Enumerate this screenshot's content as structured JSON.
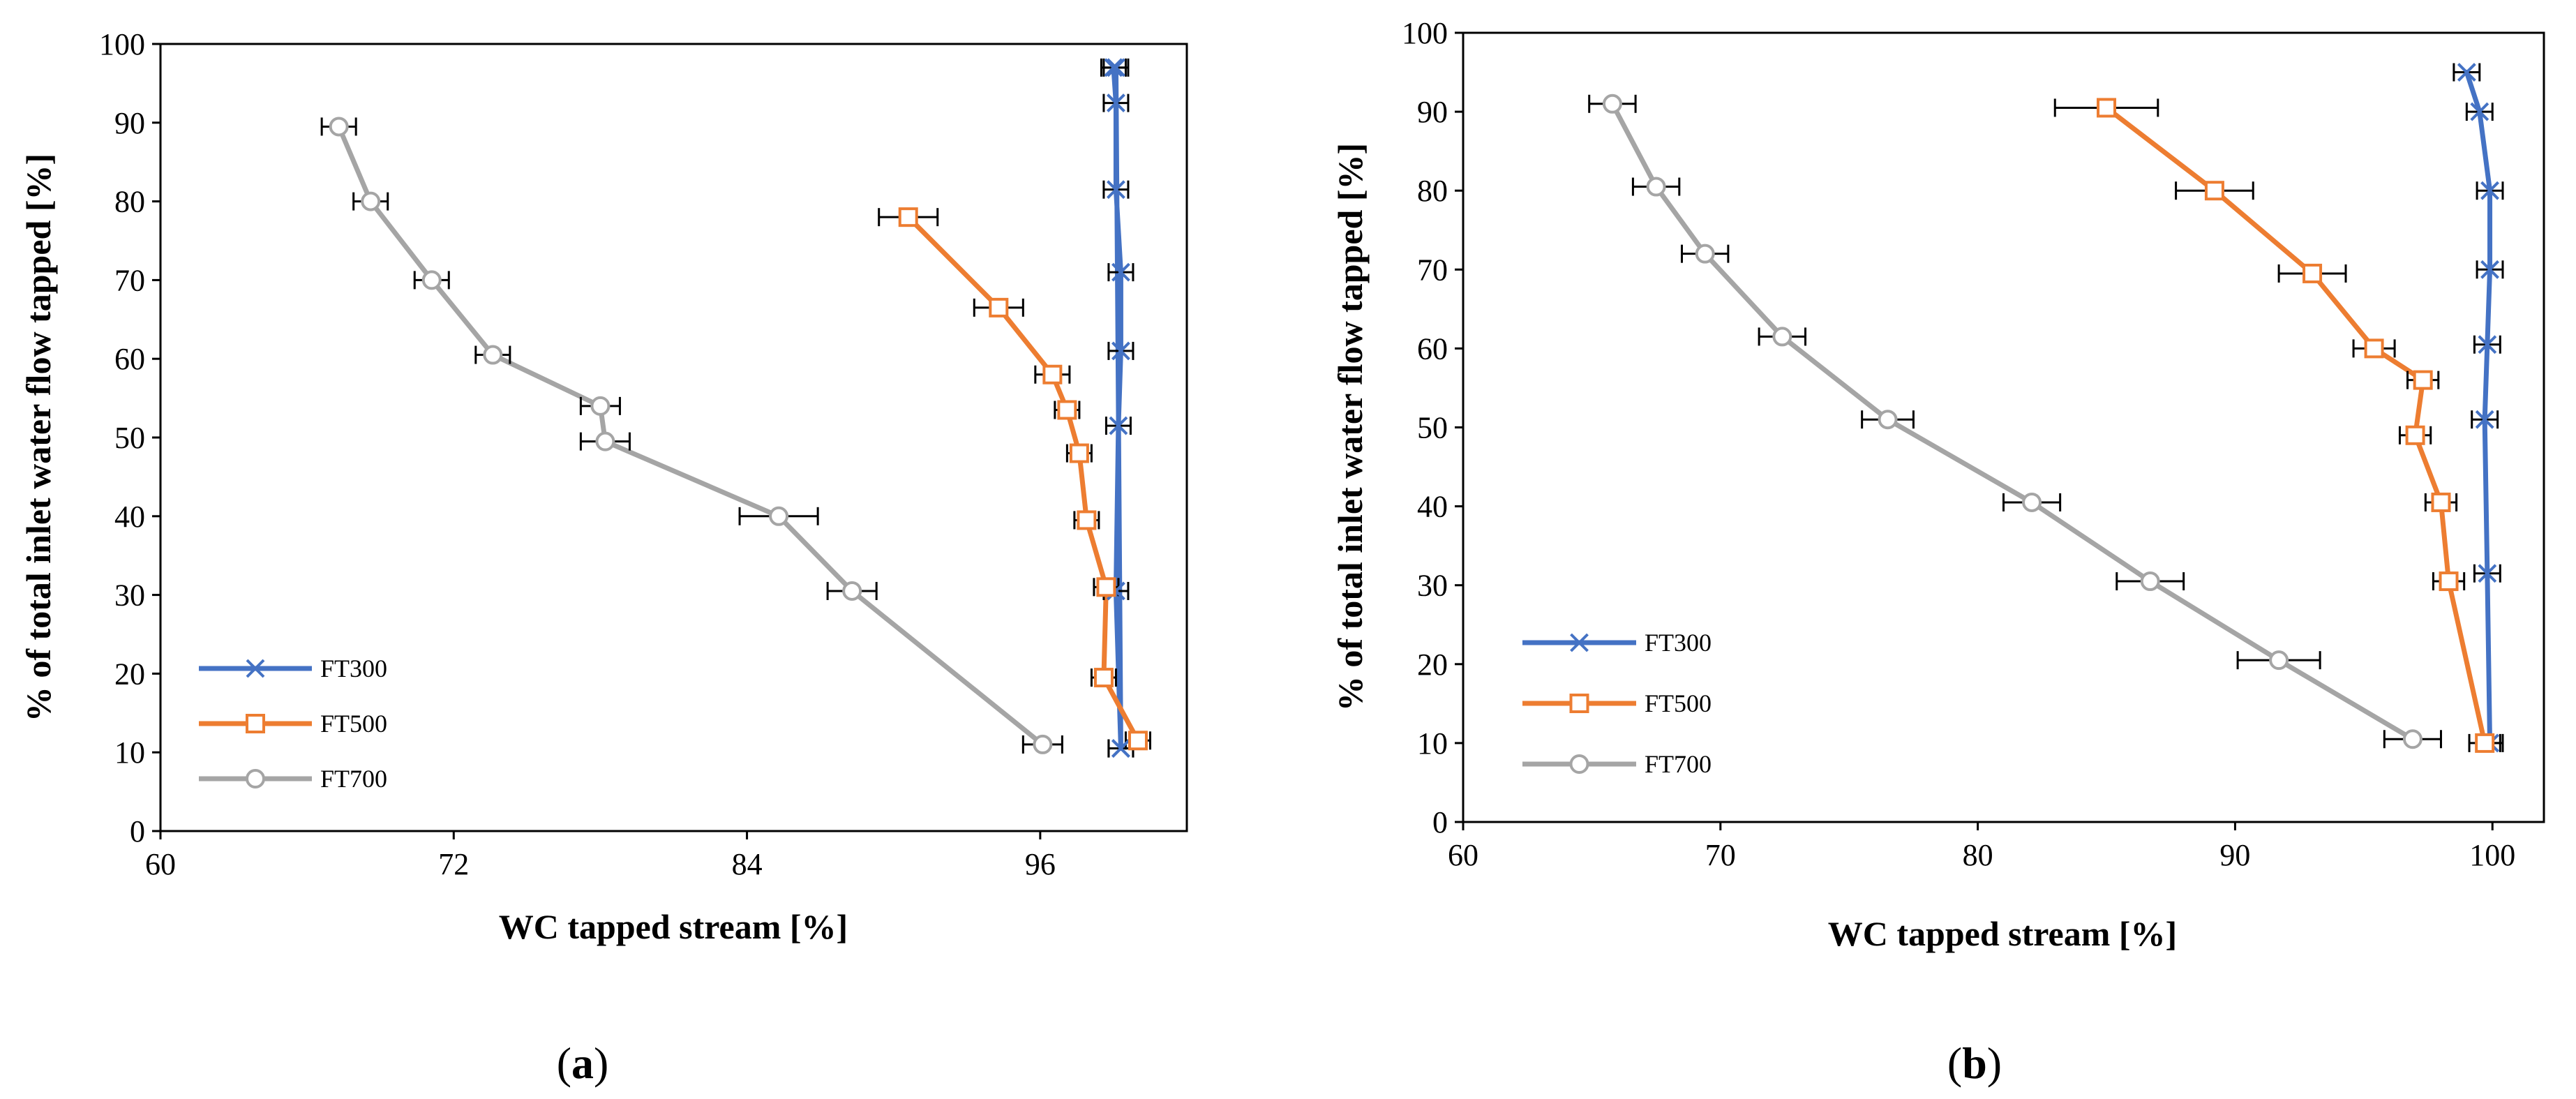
{
  "chart_data": [
    {
      "type": "line",
      "panel_label": "a",
      "xlabel": "WC tapped stream [%]",
      "ylabel": "% of total inlet water flow tapped [%]",
      "xlim": [
        60,
        102
      ],
      "ylim": [
        0,
        100
      ],
      "xticks": [
        60,
        72,
        84,
        96
      ],
      "yticks": [
        0,
        10,
        20,
        30,
        40,
        50,
        60,
        70,
        80,
        90,
        100
      ],
      "legend_position": "bottom-left",
      "series": [
        {
          "name": "FT300",
          "color": "#4472C4",
          "marker": "x",
          "x": [
            99.3,
            99.1,
            99.2,
            99.3,
            99.3,
            99.1,
            99.1,
            99.0,
            99.1,
            99.3
          ],
          "y": [
            10.5,
            30.5,
            51.5,
            61,
            71,
            81.5,
            92.5,
            97,
            97,
            10.5
          ],
          "xerr": [
            0.5,
            0.5,
            0.5,
            0.5,
            0.5,
            0.5,
            0.5,
            0.5,
            0.5,
            0.5
          ]
        },
        {
          "name": "FT500",
          "color": "#ED7D31",
          "marker": "square",
          "x": [
            100.0,
            98.6,
            98.7,
            97.9,
            97.6,
            97.1,
            96.5,
            94.3,
            90.6
          ],
          "y": [
            11.5,
            19.5,
            31,
            39.5,
            48,
            53.5,
            58,
            66.5,
            78
          ],
          "xerr": [
            0.5,
            0.5,
            0.5,
            0.5,
            0.5,
            0.5,
            0.7,
            1.0,
            1.2
          ]
        },
        {
          "name": "FT700",
          "color": "#A5A5A5",
          "marker": "circle",
          "x": [
            96.1,
            88.3,
            85.3,
            78.2,
            78.0,
            73.6,
            71.1,
            68.6,
            67.3
          ],
          "y": [
            11,
            30.5,
            40,
            49.5,
            54,
            60.5,
            70,
            80,
            89.5
          ],
          "xerr": [
            0.8,
            1.0,
            1.6,
            1.0,
            0.8,
            0.7,
            0.7,
            0.7,
            0.7
          ]
        }
      ]
    },
    {
      "type": "line",
      "panel_label": "b",
      "xlabel": "WC tapped stream [%]",
      "ylabel": "% of total inlet water flow tapped [%]",
      "xlim": [
        60,
        102
      ],
      "ylim": [
        0,
        100
      ],
      "xticks": [
        60,
        70,
        80,
        90,
        100
      ],
      "yticks": [
        0,
        10,
        20,
        30,
        40,
        50,
        60,
        70,
        80,
        90,
        100
      ],
      "legend_position": "bottom-left",
      "series": [
        {
          "name": "FT300",
          "color": "#4472C4",
          "marker": "x",
          "x": [
            99.9,
            99.8,
            99.7,
            99.8,
            99.9,
            99.9,
            99.5,
            99.0
          ],
          "y": [
            10,
            31.5,
            51,
            60.5,
            70,
            80,
            90,
            95
          ],
          "xerr": [
            0.5,
            0.5,
            0.5,
            0.5,
            0.5,
            0.5,
            0.5,
            0.5
          ]
        },
        {
          "name": "FT500",
          "color": "#ED7D31",
          "marker": "square",
          "x": [
            99.7,
            98.3,
            98.0,
            97.0,
            97.3,
            95.4,
            93.0,
            89.2,
            85.0
          ],
          "y": [
            10,
            30.5,
            40.5,
            49,
            56,
            60,
            69.5,
            80,
            90.5
          ],
          "xerr": [
            0.6,
            0.6,
            0.6,
            0.6,
            0.6,
            0.8,
            1.3,
            1.5,
            2.0
          ]
        },
        {
          "name": "FT700",
          "color": "#A5A5A5",
          "marker": "circle",
          "x": [
            96.9,
            91.7,
            86.7,
            82.1,
            76.5,
            72.4,
            69.4,
            67.5,
            65.8
          ],
          "y": [
            10.5,
            20.5,
            30.5,
            40.5,
            51,
            61.5,
            72,
            80.5,
            91
          ],
          "xerr": [
            1.1,
            1.6,
            1.3,
            1.1,
            1.0,
            0.9,
            0.9,
            0.9,
            0.9
          ]
        }
      ]
    }
  ]
}
